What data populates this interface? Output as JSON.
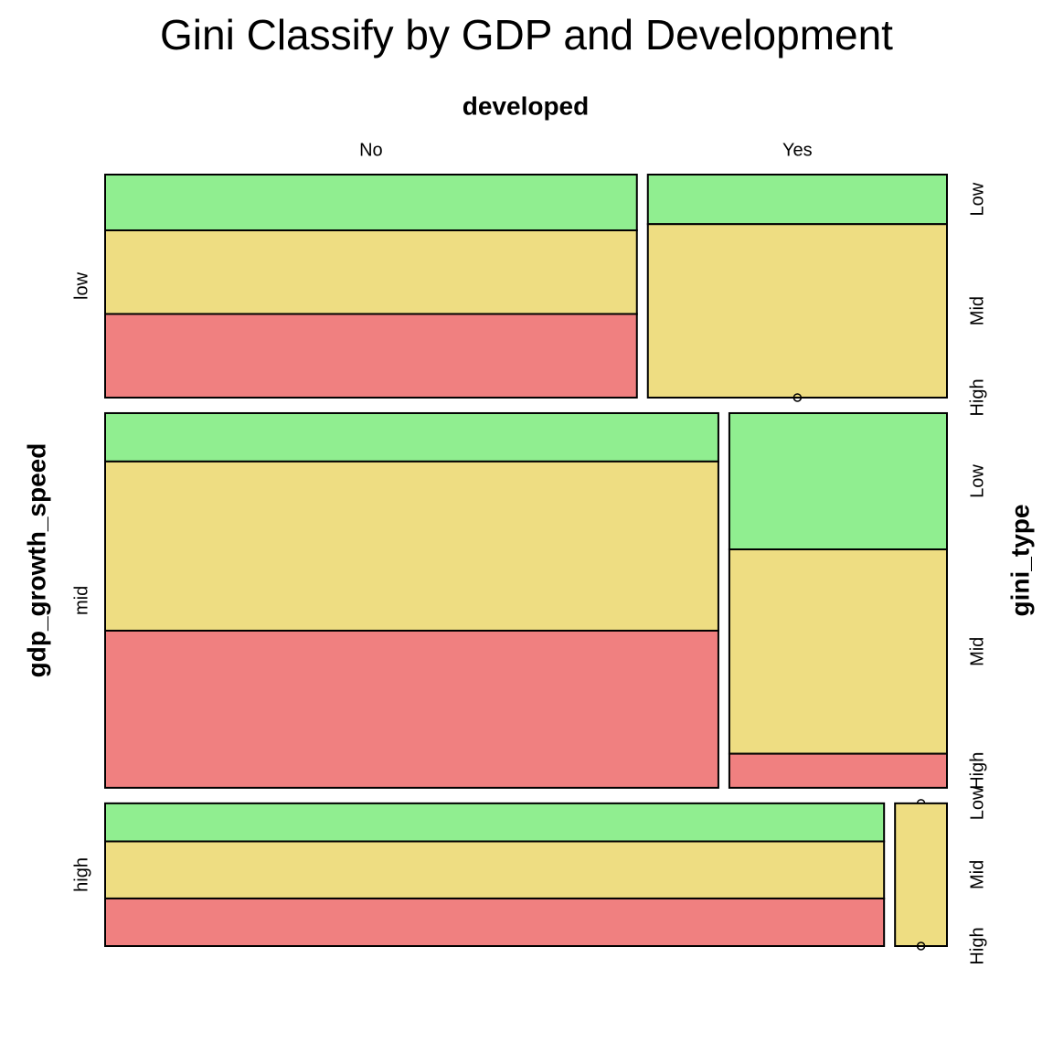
{
  "chart_data": {
    "type": "mosaic",
    "title": "Gini Classify by GDP and Development",
    "x_label": "developed",
    "y_label": "gdp_growth_speed",
    "z_label": "gini_type",
    "rows": [
      "low",
      "mid",
      "high"
    ],
    "columns": [
      "No",
      "Yes"
    ],
    "levels": [
      "Low",
      "Mid",
      "High"
    ],
    "colors": [
      "#90ee90",
      "#eedd82",
      "#f08080"
    ],
    "counts": [
      [
        [
          4,
          6,
          6
        ],
        [
          2,
          7,
          0
        ]
      ],
      [
        [
          4,
          14,
          13
        ],
        [
          4,
          6,
          1
        ]
      ],
      [
        [
          4,
          6,
          5
        ],
        [
          0,
          1,
          0
        ]
      ]
    ]
  }
}
